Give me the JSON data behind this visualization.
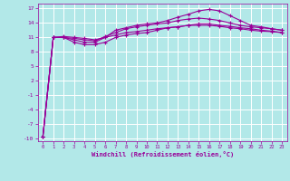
{
  "xlabel": "Windchill (Refroidissement éolien,°C)",
  "background_color": "#b2e8e8",
  "grid_color": "#ffffff",
  "line_color": "#990099",
  "xlim": [
    -0.5,
    23.5
  ],
  "ylim": [
    -10.5,
    18
  ],
  "yticks": [
    -10,
    -7,
    -4,
    -1,
    2,
    5,
    8,
    11,
    14,
    17
  ],
  "xticks": [
    0,
    1,
    2,
    3,
    4,
    5,
    6,
    7,
    8,
    9,
    10,
    11,
    12,
    13,
    14,
    15,
    16,
    17,
    18,
    19,
    20,
    21,
    22,
    23
  ],
  "curves": [
    [
      -9.5,
      11.0,
      11.0,
      10.0,
      9.5,
      9.5,
      10.0,
      11.0,
      11.5,
      11.8,
      12.0,
      12.5,
      13.0,
      13.2,
      13.5,
      13.5,
      13.5,
      13.3,
      13.0,
      12.8,
      12.5,
      12.3,
      12.2,
      12.0
    ],
    [
      -9.5,
      11.0,
      11.0,
      10.5,
      10.0,
      10.0,
      11.0,
      12.5,
      13.0,
      13.5,
      13.8,
      14.0,
      14.5,
      15.2,
      15.8,
      16.5,
      16.8,
      16.5,
      15.5,
      14.5,
      13.5,
      13.2,
      12.8,
      12.5
    ],
    [
      -9.5,
      11.0,
      11.0,
      10.8,
      10.5,
      10.3,
      11.2,
      12.0,
      12.8,
      13.2,
      13.5,
      13.8,
      14.0,
      14.5,
      14.8,
      15.0,
      14.8,
      14.5,
      14.0,
      13.5,
      13.2,
      13.0,
      12.8,
      12.5
    ],
    [
      -9.5,
      11.0,
      11.2,
      11.0,
      10.8,
      10.5,
      11.0,
      11.5,
      12.0,
      12.2,
      12.5,
      12.8,
      13.0,
      13.2,
      13.5,
      13.8,
      13.8,
      13.5,
      13.3,
      13.0,
      12.8,
      12.5,
      12.3,
      12.0
    ]
  ]
}
